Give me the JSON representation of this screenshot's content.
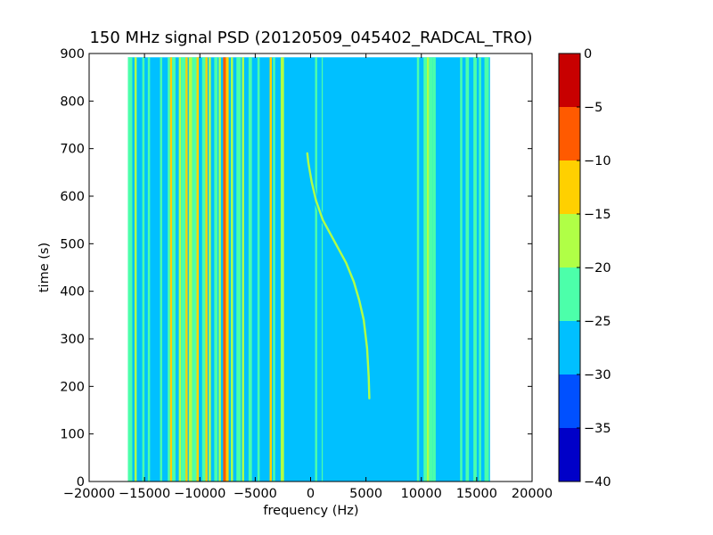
{
  "chart_data": {
    "type": "heatmap",
    "title": "150 MHz signal PSD (20120509_045402_RADCAL_TRO)",
    "xlabel": "frequency (Hz)",
    "ylabel": "time (s)",
    "xlim": [
      -20000,
      20000
    ],
    "ylim": [
      0,
      900
    ],
    "x_ticks": [
      -20000,
      -15000,
      -10000,
      -5000,
      0,
      5000,
      10000,
      15000,
      20000
    ],
    "y_ticks": [
      0,
      100,
      200,
      300,
      400,
      500,
      600,
      700,
      800,
      900
    ],
    "x_tick_labels": [
      "−20000",
      "−15000",
      "−10000",
      "−5000",
      "0",
      "5000",
      "10000",
      "15000",
      "20000"
    ],
    "y_tick_labels": [
      "0",
      "100",
      "200",
      "300",
      "400",
      "500",
      "600",
      "700",
      "800",
      "900"
    ],
    "data_extent": {
      "x": [
        -16500,
        16200
      ],
      "y": [
        0,
        892
      ]
    },
    "background_level": -27.5,
    "vertical_bands": [
      {
        "x_from": -16500,
        "x_to": -16100,
        "level": -22
      },
      {
        "x_from": -15900,
        "x_to": -15700,
        "level": -17
      },
      {
        "x_from": -15200,
        "x_to": -15000,
        "level": -22
      },
      {
        "x_from": -14700,
        "x_to": -14500,
        "level": -22
      },
      {
        "x_from": -13600,
        "x_to": -13400,
        "level": -22
      },
      {
        "x_from": -12900,
        "x_to": -12700,
        "level": -22
      },
      {
        "x_from": -12700,
        "x_to": -12500,
        "level": -13
      },
      {
        "x_from": -12500,
        "x_to": -12200,
        "level": -22
      },
      {
        "x_from": -11900,
        "x_to": -11700,
        "level": -17
      },
      {
        "x_from": -11700,
        "x_to": -11300,
        "level": -22
      },
      {
        "x_from": -11300,
        "x_to": -11100,
        "level": -13
      },
      {
        "x_from": -11000,
        "x_to": -10700,
        "level": -17
      },
      {
        "x_from": -10700,
        "x_to": -10300,
        "level": -22
      },
      {
        "x_from": -10300,
        "x_to": -10100,
        "level": -13
      },
      {
        "x_from": -9800,
        "x_to": -9500,
        "level": -22
      },
      {
        "x_from": -9500,
        "x_to": -9300,
        "level": -13
      },
      {
        "x_from": -9200,
        "x_to": -9000,
        "level": -17
      },
      {
        "x_from": -8700,
        "x_to": -8400,
        "level": -22
      },
      {
        "x_from": -8300,
        "x_to": -8100,
        "level": -17
      },
      {
        "x_from": -7900,
        "x_to": -7650,
        "level": -8
      },
      {
        "x_from": -7650,
        "x_to": -7400,
        "level": -13
      },
      {
        "x_from": -7200,
        "x_to": -7000,
        "level": -17
      },
      {
        "x_from": -6700,
        "x_to": -6300,
        "level": -22
      },
      {
        "x_from": -6200,
        "x_to": -6000,
        "level": -17
      },
      {
        "x_from": -5600,
        "x_to": -5300,
        "level": -22
      },
      {
        "x_from": -4800,
        "x_to": -4600,
        "level": -22
      },
      {
        "x_from": -3700,
        "x_to": -3500,
        "level": -13
      },
      {
        "x_from": -3400,
        "x_to": -3200,
        "level": -22
      },
      {
        "x_from": -2700,
        "x_to": -2400,
        "level": -17
      },
      {
        "x_from": 400,
        "x_to": 600,
        "level": -22
      },
      {
        "x_from": 1000,
        "x_to": 1100,
        "level": -22
      },
      {
        "x_from": 9600,
        "x_to": 9800,
        "level": -22
      },
      {
        "x_from": 10200,
        "x_to": 10500,
        "level": -22
      },
      {
        "x_from": 10500,
        "x_to": 10700,
        "level": -17
      },
      {
        "x_from": 10700,
        "x_to": 11000,
        "level": -22
      },
      {
        "x_from": 11000,
        "x_to": 11300,
        "level": -22
      },
      {
        "x_from": 13500,
        "x_to": 13700,
        "level": -22
      },
      {
        "x_from": 14000,
        "x_to": 14300,
        "level": -22
      },
      {
        "x_from": 14700,
        "x_to": 15000,
        "level": -22
      },
      {
        "x_from": 15200,
        "x_to": 15400,
        "level": -22
      },
      {
        "x_from": 15700,
        "x_to": 16100,
        "level": -22
      }
    ],
    "chirp_trace": {
      "level": -17,
      "points": [
        [
          5300,
          175
        ],
        [
          5250,
          220
        ],
        [
          5100,
          280
        ],
        [
          4800,
          340
        ],
        [
          4400,
          380
        ],
        [
          3900,
          420
        ],
        [
          3200,
          460
        ],
        [
          2500,
          490
        ],
        [
          1800,
          520
        ],
        [
          1100,
          550
        ],
        [
          500,
          590
        ],
        [
          100,
          630
        ],
        [
          -200,
          670
        ],
        [
          -300,
          690
        ]
      ]
    },
    "colorbar": {
      "min": -40,
      "max": 0,
      "ticks": [
        0,
        -5,
        -10,
        -15,
        -20,
        -25,
        -30,
        -35,
        -40
      ],
      "tick_labels": [
        "0",
        "−5",
        "−10",
        "−15",
        "−20",
        "−25",
        "−30",
        "−35",
        "−40"
      ],
      "levels": [
        {
          "from": -40,
          "to": -35,
          "color": "#0000c8"
        },
        {
          "from": -35,
          "to": -30,
          "color": "#0050ff"
        },
        {
          "from": -30,
          "to": -25,
          "color": "#00c0ff"
        },
        {
          "from": -25,
          "to": -20,
          "color": "#4cffaa"
        },
        {
          "from": -20,
          "to": -15,
          "color": "#b0ff46"
        },
        {
          "from": -15,
          "to": -10,
          "color": "#ffd000"
        },
        {
          "from": -10,
          "to": -5,
          "color": "#ff5a00"
        },
        {
          "from": -5,
          "to": 0,
          "color": "#c80000"
        }
      ]
    }
  }
}
